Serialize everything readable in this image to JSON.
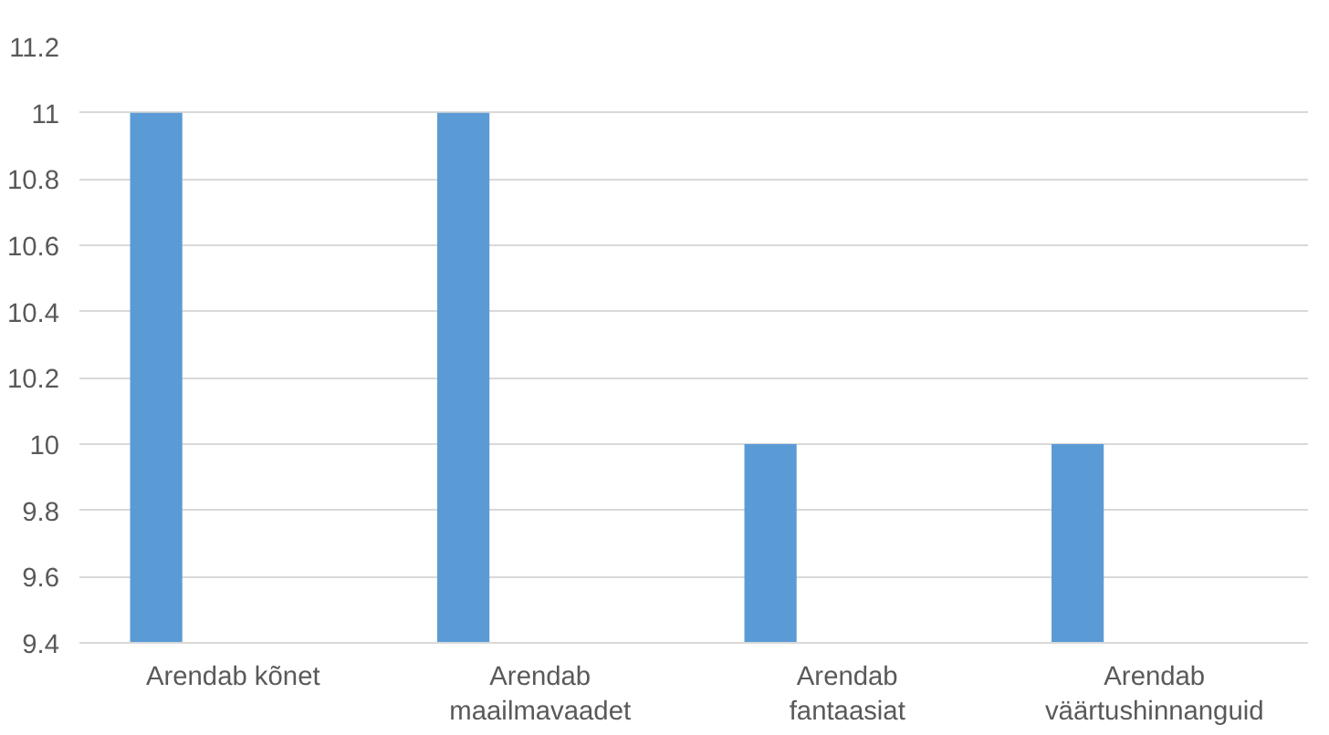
{
  "chart_data": {
    "type": "bar",
    "categories": [
      "Arendab kõnet",
      "Arendab maailmavaadet",
      "Arendab fantaasiat",
      "Arendab väärtushinnanguid"
    ],
    "values": [
      11,
      11,
      10,
      10
    ],
    "color": "#5b9bd5",
    "ylim": [
      9.4,
      11.2
    ],
    "yticks": [
      9.4,
      9.6,
      9.8,
      10,
      10.2,
      10.4,
      10.6,
      10.8,
      11,
      11.2
    ],
    "grid": "y"
  }
}
